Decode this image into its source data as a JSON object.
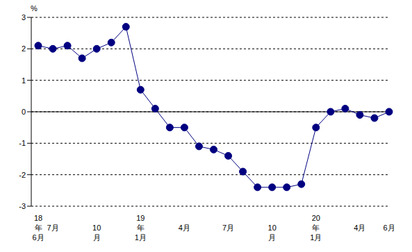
{
  "chart_data": {
    "type": "line",
    "y_label": "%",
    "categories": [
      "18\n年\n6月",
      "7月",
      null,
      null,
      "10\n月",
      null,
      null,
      "19\n年\n1月",
      null,
      null,
      "4月",
      null,
      null,
      "7月",
      null,
      null,
      "10\n月",
      null,
      null,
      "20\n年\n1月",
      null,
      null,
      "4月",
      null,
      "6月"
    ],
    "values": [
      2.1,
      2.0,
      2.1,
      1.7,
      2.0,
      2.2,
      2.7,
      0.7,
      0.1,
      -0.5,
      -0.5,
      -1.1,
      -1.2,
      -1.4,
      -1.9,
      -2.4,
      -2.4,
      -2.4,
      -2.3,
      -0.5,
      0.0,
      0.1,
      -0.1,
      -0.2,
      0.0
    ],
    "color": "#000080",
    "marker": "circle",
    "line_style": "solid",
    "ylim": [
      -3,
      3
    ],
    "yticks": [
      -3,
      -2,
      -1,
      0,
      1,
      2,
      3
    ],
    "grid": true
  }
}
